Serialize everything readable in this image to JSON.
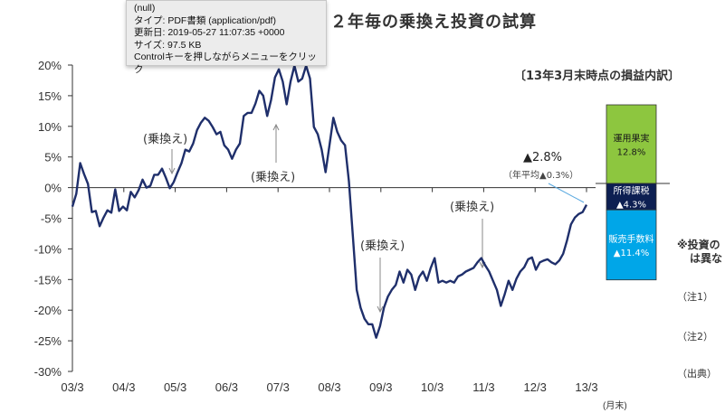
{
  "tooltip": {
    "lines": [
      "(null)",
      "タイプ: PDF書類 (application/pdf)",
      "更新日: 2019-05-27 11:07:35 +0000",
      "サイズ: 97.5 KB",
      "Controlキーを押しながらメニューをクリック"
    ]
  },
  "page": {
    "title": "２年毎の乗換え投資の試算",
    "breakdown_title": "〔13年3月末時点の損益内訳〕",
    "side_note": [
      "※投資の",
      "は異な"
    ],
    "footnotes": [
      "（注1）",
      "（注2）",
      "（出典）"
    ]
  },
  "chart_data": {
    "type": "line",
    "title": "２年毎の乗換え投資の試算",
    "xlabel": "(月末)",
    "ylabel": "",
    "ylim": [
      -30,
      20
    ],
    "yticks": [
      "20%",
      "15%",
      "10%",
      "5%",
      "0%",
      "-5%",
      "-10%",
      "-15%",
      "-20%",
      "-25%",
      "-30%"
    ],
    "ytick_values": [
      20,
      15,
      10,
      5,
      0,
      -5,
      -10,
      -15,
      -20,
      -25,
      -30
    ],
    "xticks": [
      "03/3",
      "04/3",
      "05/3",
      "06/3",
      "07/3",
      "08/3",
      "09/3",
      "10/3",
      "11/3",
      "12/3",
      "13/3"
    ],
    "x_range_months": [
      0,
      120
    ],
    "series": [
      {
        "name": "乗換え投資",
        "color": "#1f2f6b",
        "values": [
          -3.1,
          -1.0,
          4.0,
          2.2,
          0.6,
          -4.0,
          -3.8,
          -6.3,
          -4.9,
          -3.7,
          -4.1,
          -0.3,
          -3.8,
          -3.1,
          -3.7,
          -0.7,
          -1.6,
          -0.4,
          1.3,
          0,
          0.3,
          2.1,
          2.1,
          3.1,
          1.6,
          -0.1,
          0.9,
          2.5,
          4.0,
          6.2,
          5.9,
          7.2,
          9.4,
          10.6,
          11.4,
          10.9,
          9.9,
          8.7,
          9.1,
          6.9,
          6.2,
          4.7,
          6.2,
          7.2,
          11.7,
          12.2,
          12.2,
          13.7,
          15.8,
          15.0,
          11.7,
          14.3,
          18.0,
          19.3,
          17.3,
          13.6,
          17.3,
          19.9,
          17.3,
          17.8,
          19.9,
          17.8,
          9.9,
          8.7,
          6.2,
          2.5,
          6.9,
          11.4,
          9.1,
          7.7,
          6.9,
          1.0,
          -7.8,
          -16.7,
          -19.6,
          -21.4,
          -22.3,
          -22.3,
          -24.5,
          -22.6,
          -19.6,
          -17.8,
          -16.7,
          -15.9,
          -13.7,
          -15.5,
          -13.4,
          -14.2,
          -16.7,
          -14.6,
          -13.7,
          -15.2,
          -13.1,
          -11.5,
          -15.5,
          -15.2,
          -15.5,
          -15.2,
          -15.5,
          -14.5,
          -14.2,
          -13.7,
          -13.4,
          -13.1,
          -12.2,
          -11.5,
          -12.7,
          -13.7,
          -15.2,
          -16.7,
          -19.3,
          -17.4,
          -15.2,
          -16.7,
          -14.9,
          -13.7,
          -13.0,
          -11.7,
          -11.4,
          -13.4,
          -12.2,
          -11.9,
          -11.7,
          -12.2,
          -12.5,
          -11.9,
          -10.8,
          -8.6,
          -6.0,
          -4.9,
          -4.3,
          -4.0,
          -2.8
        ]
      }
    ],
    "annotations": [
      {
        "text": "(乗換え)",
        "month": 19,
        "arrow": "down"
      },
      {
        "text": "(乗換え)",
        "month": 47,
        "arrow": "up"
      },
      {
        "text": "(乗換え)",
        "month": 72,
        "arrow": "down"
      },
      {
        "text": "(乗換え)",
        "month": 96,
        "arrow": "down"
      },
      {
        "text": "▲2.8%",
        "month": 120
      },
      {
        "text": "（年平均▲0.3%）",
        "month": 120
      }
    ],
    "breakdown": [
      {
        "label": "運用果実",
        "value": "12.8%",
        "num": 12.8,
        "color": "#8dc63f"
      },
      {
        "label": "所得課税",
        "value": "▲4.3%",
        "num": -4.3,
        "color": "#0d1f52"
      },
      {
        "label": "販売手数料",
        "value": "▲11.4%",
        "num": -11.4,
        "color": "#00a6e8"
      }
    ],
    "grid": false,
    "legend": "none"
  }
}
